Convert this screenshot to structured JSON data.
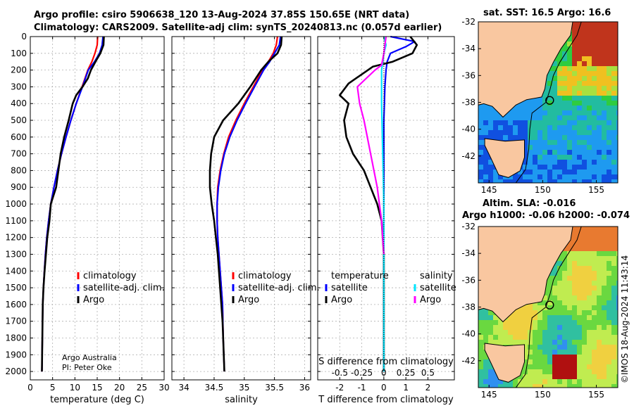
{
  "title_line1": "Argo profile: csiro 5906638_120 13-Aug-2024 37.85S 150.65E (NRT data)",
  "title_line2": "Climatology: CARS2009. Satellite-adj clim: synTS_20240813.nc (0.057d earlier)",
  "credit": "©IMOS 18-Aug-2024 11:43:14",
  "attribution_line1": "Argo Australia",
  "attribution_line2": "PI: Peter Oke",
  "colors": {
    "climatology": "#ff0000",
    "satellite_adj": "#0000ff",
    "argo": "#000000",
    "temp_sat_diff": "#00a6ff",
    "salinity_sat_diff": "#00e5ff",
    "salinity_argo_diff": "#ff00ff",
    "land": "#f9c7a0",
    "marker": "#22cc22"
  },
  "chart_data": [
    {
      "type": "line",
      "xlabel": "temperature (deg C)",
      "ylabel": "",
      "xlim": [
        0,
        30
      ],
      "ylim": [
        0,
        2050
      ],
      "y_reversed": true,
      "grid": true,
      "xticks": [
        0,
        5,
        10,
        15,
        20,
        25,
        30
      ],
      "yticks": [
        0,
        100,
        200,
        300,
        400,
        500,
        600,
        700,
        800,
        900,
        1000,
        1100,
        1200,
        1300,
        1400,
        1500,
        1600,
        1700,
        1800,
        1900,
        2000
      ],
      "legend_position": "bottom-right",
      "series": [
        {
          "name": "climatology",
          "color": "#ff0000",
          "x": [
            15.1,
            15.0,
            14.5,
            13.8,
            12.9,
            11.6,
            10.3,
            9.1,
            8.0,
            7.0,
            6.1,
            5.3,
            4.6,
            4.1,
            3.7,
            3.4,
            3.15,
            2.95,
            2.8,
            2.7,
            2.6
          ],
          "y": [
            0,
            50,
            100,
            150,
            200,
            300,
            400,
            500,
            600,
            700,
            800,
            900,
            1000,
            1100,
            1200,
            1300,
            1400,
            1500,
            1600,
            1800,
            2000
          ]
        },
        {
          "name": "satellite-adj. clim.",
          "color": "#0000ff",
          "x": [
            16.3,
            16.1,
            15.5,
            14.4,
            13.0,
            11.7,
            10.3,
            9.1,
            8.0,
            7.0,
            6.1,
            5.3,
            4.6,
            4.1,
            3.7,
            3.4,
            3.15,
            2.95,
            2.8,
            2.7,
            2.6
          ],
          "y": [
            0,
            50,
            100,
            150,
            200,
            300,
            400,
            500,
            600,
            700,
            800,
            900,
            1000,
            1100,
            1200,
            1300,
            1400,
            1500,
            1600,
            1800,
            2000
          ]
        },
        {
          "name": "Argo",
          "color": "#000000",
          "x": [
            16.5,
            16.4,
            15.7,
            14.6,
            13.6,
            12.9,
            11.7,
            10.3,
            9.5,
            8.6,
            7.6,
            6.8,
            6.3,
            5.8,
            4.6,
            4.3,
            3.8,
            3.5,
            3.2,
            2.95,
            2.8,
            2.7,
            2.6
          ],
          "y": [
            0,
            50,
            100,
            150,
            200,
            250,
            300,
            350,
            400,
            500,
            600,
            700,
            800,
            900,
            1000,
            1100,
            1200,
            1300,
            1400,
            1500,
            1600,
            1800,
            2000
          ]
        }
      ]
    },
    {
      "type": "line",
      "xlabel": "salinity",
      "ylabel": "",
      "xlim": [
        33.8,
        36.1
      ],
      "ylim": [
        0,
        2050
      ],
      "y_reversed": true,
      "grid": true,
      "xticks": [
        34,
        34.5,
        35,
        35.5,
        36
      ],
      "legend_position": "bottom-right",
      "series": [
        {
          "name": "climatology",
          "color": "#ff0000",
          "x": [
            35.55,
            35.53,
            35.48,
            35.4,
            35.3,
            35.15,
            35.0,
            34.86,
            34.74,
            34.66,
            34.6,
            34.56,
            34.55,
            34.55,
            34.56,
            34.58,
            34.6,
            34.62,
            34.64,
            34.65,
            34.67
          ],
          "y": [
            0,
            50,
            100,
            150,
            200,
            300,
            400,
            500,
            600,
            700,
            800,
            900,
            1000,
            1100,
            1200,
            1300,
            1400,
            1500,
            1600,
            1800,
            2000
          ]
        },
        {
          "name": "satellite-adj. clim.",
          "color": "#0000ff",
          "x": [
            35.6,
            35.58,
            35.5,
            35.42,
            35.32,
            35.17,
            35.02,
            34.88,
            34.76,
            34.67,
            34.61,
            34.57,
            34.55,
            34.55,
            34.56,
            34.58,
            34.6,
            34.62,
            34.64,
            34.65,
            34.67
          ],
          "y": [
            0,
            50,
            100,
            150,
            200,
            300,
            400,
            500,
            600,
            700,
            800,
            900,
            1000,
            1100,
            1200,
            1300,
            1400,
            1500,
            1600,
            1800,
            2000
          ]
        },
        {
          "name": "Argo",
          "color": "#000000",
          "x": [
            35.62,
            35.61,
            35.55,
            35.4,
            35.28,
            35.1,
            34.9,
            34.65,
            34.5,
            34.45,
            34.43,
            34.43,
            34.46,
            34.5,
            34.53,
            34.56,
            34.58,
            34.6,
            34.62,
            34.64,
            34.65,
            34.67
          ],
          "y": [
            0,
            50,
            100,
            150,
            200,
            300,
            400,
            500,
            600,
            700,
            800,
            900,
            1000,
            1100,
            1200,
            1300,
            1400,
            1500,
            1600,
            1700,
            1800,
            2000
          ]
        }
      ]
    },
    {
      "type": "line",
      "xlabel": "T difference from climatology",
      "xlabel2": "S difference from climatology",
      "xlim": [
        -3,
        3.2
      ],
      "ylim": [
        0,
        2050
      ],
      "y_reversed": true,
      "grid": true,
      "xticks": [
        -2,
        -1,
        0,
        1,
        2
      ],
      "xticks_labels_s": [
        "-0.5",
        "-0.25",
        "0",
        "0.25",
        "0.5"
      ],
      "xticks_s_positions": [
        -2,
        -1,
        0,
        1,
        2
      ],
      "legend_temperature_title": "temperature",
      "legend_salinity_title": "salinity",
      "series": [
        {
          "name": "satellite",
          "group": "temperature",
          "color": "#0000ff",
          "x": [
            0.3,
            1.4,
            1.0,
            0.3,
            0.15,
            0.1,
            0.05,
            0.0,
            0.0,
            0.0,
            0.0
          ],
          "y": [
            0,
            30,
            60,
            100,
            150,
            200,
            300,
            500,
            800,
            1200,
            2000
          ]
        },
        {
          "name": "Argo",
          "group": "temperature",
          "color": "#000000",
          "x": [
            1.2,
            1.5,
            1.3,
            0.4,
            -0.5,
            -1.6,
            -2.0,
            -1.6,
            -1.8,
            -1.7,
            -1.4,
            -0.9,
            -0.6,
            -0.3,
            -0.1,
            0.0,
            0.0
          ],
          "y": [
            0,
            50,
            100,
            150,
            180,
            280,
            350,
            400,
            500,
            600,
            700,
            800,
            900,
            1000,
            1100,
            1300,
            2000
          ]
        },
        {
          "name": "satellite",
          "group": "salinity",
          "color": "#00e5ff",
          "x": [
            0.0,
            0.1,
            0.0,
            -0.1,
            -0.1,
            -0.05,
            0.0,
            0.0
          ],
          "y": [
            0,
            50,
            100,
            200,
            400,
            700,
            1000,
            2000
          ]
        },
        {
          "name": "Argo",
          "group": "salinity",
          "color": "#ff00ff",
          "x": [
            0.1,
            0.0,
            -0.1,
            -0.4,
            -0.8,
            -1.2,
            -1.1,
            -0.9,
            -0.6,
            -0.3,
            -0.1,
            0.0
          ],
          "y": [
            0,
            100,
            170,
            200,
            250,
            300,
            400,
            500,
            700,
            900,
            1100,
            1300
          ]
        }
      ]
    },
    {
      "type": "heatmap",
      "title": "sat. SST: 16.5 Argo: 16.6",
      "xlim": [
        144,
        157
      ],
      "ylim": [
        -44,
        -32
      ],
      "xticks": [
        145,
        150,
        155
      ],
      "yticks": [
        -32,
        -34,
        -36,
        -38,
        -40,
        -42
      ],
      "marker": {
        "lon": 150.65,
        "lat": -37.85
      }
    },
    {
      "type": "heatmap",
      "title": "Altim. SLA: -0.016",
      "subtitle": "Argo h1000: -0.06 h2000: -0.074",
      "xlim": [
        144,
        157
      ],
      "ylim": [
        -44,
        -32
      ],
      "xticks": [
        145,
        150,
        155
      ],
      "yticks": [
        -32,
        -34,
        -36,
        -38,
        -40,
        -42
      ],
      "marker": {
        "lon": 150.65,
        "lat": -37.85
      }
    }
  ]
}
